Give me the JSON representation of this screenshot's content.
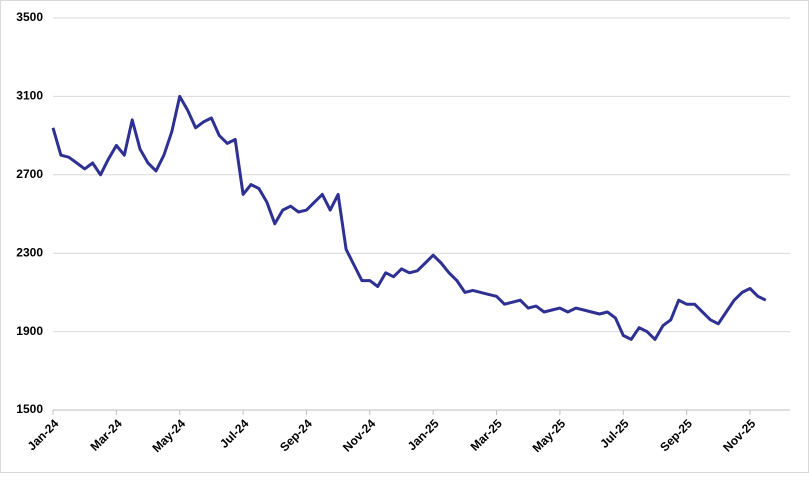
{
  "chart_data": {
    "type": "line",
    "categories": [
      "Jan-24",
      null,
      null,
      null,
      null,
      null,
      null,
      null,
      "Mar-24",
      null,
      null,
      null,
      null,
      null,
      null,
      null,
      "May-24",
      null,
      null,
      null,
      null,
      null,
      null,
      null,
      "Jul-24",
      null,
      null,
      null,
      null,
      null,
      null,
      null,
      "Sep-24",
      null,
      null,
      null,
      null,
      null,
      null,
      null,
      "Nov-24",
      null,
      null,
      null,
      null,
      null,
      null,
      null,
      "Jan-25",
      null,
      null,
      null,
      null,
      null,
      null,
      null,
      "Mar-25",
      null,
      null,
      null,
      null,
      null,
      null,
      null,
      "May-25",
      null,
      null,
      null,
      null,
      null,
      null,
      null,
      "Jul-25",
      null,
      null,
      null,
      null,
      null,
      null,
      null,
      "Sep-25",
      null,
      null,
      null,
      null,
      null,
      null,
      null,
      "Nov-25",
      null,
      null
    ],
    "series": [
      {
        "color": "#2e3192",
        "values": [
          2940,
          2800,
          2790,
          2760,
          2730,
          2760,
          2700,
          2780,
          2850,
          2800,
          2980,
          2830,
          2760,
          2720,
          2800,
          2920,
          3100,
          3030,
          2940,
          2970,
          2990,
          2900,
          2860,
          2880,
          2600,
          2650,
          2630,
          2560,
          2450,
          2520,
          2540,
          2510,
          2520,
          2560,
          2600,
          2520,
          2600,
          2320,
          2240,
          2160,
          2160,
          2130,
          2200,
          2180,
          2220,
          2200,
          2210,
          2250,
          2290,
          2250,
          2200,
          2160,
          2100,
          2110,
          2100,
          2090,
          2080,
          2040,
          2050,
          2060,
          2020,
          2030,
          2000,
          2010,
          2020,
          2000,
          2020,
          2010,
          2000,
          1990,
          2000,
          1970,
          1880,
          1860,
          1920,
          1900,
          1860,
          1930,
          1960,
          2060,
          2040,
          2040,
          2000,
          1960,
          1940,
          2000,
          2060,
          2100,
          2120,
          2080,
          2060
        ]
      }
    ],
    "ylim": [
      1500,
      3500
    ],
    "yticks": [
      1500,
      1900,
      2300,
      2700,
      3100,
      3500
    ],
    "grid": true
  }
}
